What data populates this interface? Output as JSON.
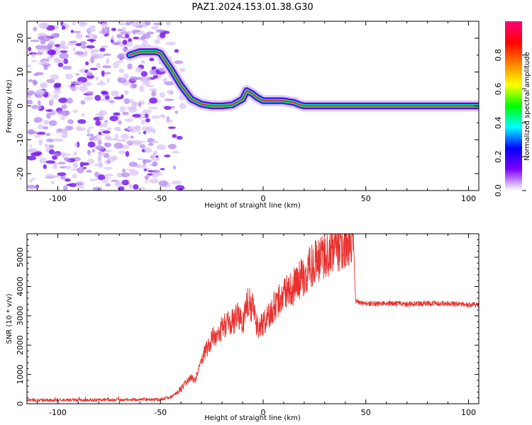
{
  "title": "PAZ1.2024.153.01.38.G30",
  "chart_data": [
    {
      "type": "heatmap",
      "xlabel": "Height of straight line (km)",
      "ylabel": "Frequency (Hz)",
      "xlim": [
        -115,
        105
      ],
      "ylim": [
        -25,
        25
      ],
      "x_ticks": [
        -100,
        -50,
        0,
        50,
        100
      ],
      "y_ticks": [
        -20,
        -10,
        0,
        10,
        20
      ],
      "colorbar": {
        "label": "Normalized spectral amplitude",
        "range": [
          0,
          1
        ],
        "ticks": [
          "0.0",
          "0.2",
          "0.4",
          "0.6",
          "0.8"
        ],
        "colors": [
          "#ffffff",
          "#7f00ff",
          "#0000ff",
          "#00ffff",
          "#00ff00",
          "#ffff00",
          "#ff8000",
          "#ff0000",
          "#ff0080"
        ]
      },
      "ridge": {
        "x": [
          -65,
          -60,
          -55,
          -52,
          -50,
          -45,
          -40,
          -35,
          -30,
          -25,
          -20,
          -15,
          -10,
          -8,
          -5,
          -3,
          0,
          5,
          10,
          15,
          18,
          20,
          30,
          40,
          50,
          60,
          70,
          80,
          90,
          100,
          105
        ],
        "y": [
          15,
          16,
          16,
          16,
          15.5,
          11,
          6,
          2,
          0.5,
          0,
          0,
          0.3,
          2,
          4.5,
          3.5,
          2.5,
          1.5,
          1.5,
          1.5,
          1,
          0.3,
          0,
          0,
          0,
          0,
          0,
          0,
          0,
          0,
          0,
          0
        ]
      },
      "noise_region": [
        -115,
        -45
      ]
    },
    {
      "type": "line",
      "xlabel": "Height of straight line (km)",
      "ylabel": "SNR (10 * v/v)",
      "xlim": [
        -115,
        105
      ],
      "ylim": [
        0,
        5800
      ],
      "x_ticks": [
        -100,
        -50,
        0,
        50,
        100
      ],
      "y_ticks": [
        0,
        1000,
        2000,
        3000,
        4000,
        5000
      ],
      "color": "#e8322f",
      "envelope": {
        "x": [
          -115,
          -100,
          -80,
          -60,
          -50,
          -45,
          -40,
          -38,
          -35,
          -33,
          -30,
          -25,
          -20,
          -15,
          -12,
          -10,
          -8,
          -5,
          -3,
          0,
          5,
          10,
          15,
          20,
          25,
          30,
          35,
          40,
          44,
          45,
          50,
          60,
          70,
          80,
          90,
          100,
          105
        ],
        "y": [
          120,
          120,
          130,
          140,
          150,
          220,
          500,
          700,
          900,
          800,
          1500,
          2200,
          2600,
          2800,
          3000,
          2600,
          3500,
          3300,
          2600,
          2700,
          3300,
          3700,
          4000,
          4400,
          4800,
          5100,
          5300,
          5500,
          5500,
          3500,
          3420,
          3430,
          3400,
          3430,
          3420,
          3380,
          3380
        ]
      }
    }
  ]
}
